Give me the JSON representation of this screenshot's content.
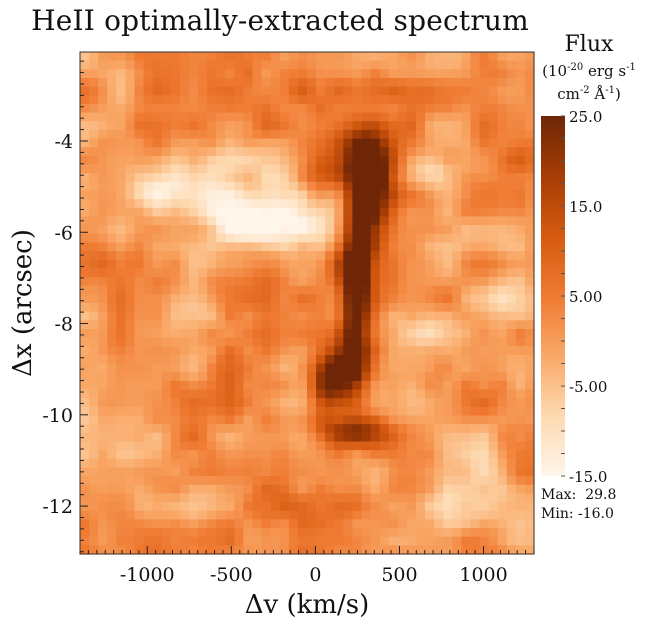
{
  "chart_data": {
    "type": "heatmap",
    "title": "HeII optimally-extracted spectrum",
    "xlabel": "Δv (km/s)",
    "ylabel": "Δx (arcsec)",
    "xlim": [
      -1400,
      1300
    ],
    "ylim": [
      -13.05,
      -2.05
    ],
    "x_ticks": [
      -1000,
      -500,
      0,
      500,
      1000
    ],
    "x_tick_labels": [
      "-1000",
      "-500",
      "0",
      "500",
      "1000"
    ],
    "y_ticks": [
      -4,
      -6,
      -8,
      -10,
      -12
    ],
    "y_tick_labels": [
      "-4",
      "-6",
      "-8",
      "-10",
      "-12"
    ],
    "colorbar": {
      "title": "Flux",
      "units_line1": "(10",
      "units_exp1": "-20",
      "units_line1b": " erg s",
      "units_exp2": "-1",
      "units_line2": "cm",
      "units_exp3": "-2",
      "units_line2b": " Å",
      "units_exp4": "-1",
      "units_line2c": ")",
      "range": [
        -15,
        25
      ],
      "tick_labels": [
        "25.0",
        "15.0",
        "5.00",
        "-5.00",
        "-15.0"
      ],
      "tick_values": [
        25,
        15,
        5,
        -5,
        -15
      ],
      "colors": [
        "#fff6ec",
        "#fdd9b0",
        "#f9a867",
        "#ef7a32",
        "#d55a10",
        "#a63d05",
        "#6e2606"
      ]
    },
    "stats": {
      "max_label": "Max:",
      "max_value": "29.8",
      "min_label": "Min:",
      "min_value": "-16.0"
    },
    "features": [
      {
        "vx": 290,
        "y": -4.35,
        "sx": 130,
        "sy": 0.45,
        "amp": 20
      },
      {
        "vx": 330,
        "y": -5.0,
        "sx": 90,
        "sy": 0.7,
        "amp": 24
      },
      {
        "vx": 250,
        "y": -6.4,
        "sx": 70,
        "sy": 1.0,
        "amp": 21
      },
      {
        "vx": 230,
        "y": -7.9,
        "sx": 65,
        "sy": 0.9,
        "amp": 19
      },
      {
        "vx": 170,
        "y": -9.1,
        "sx": 110,
        "sy": 0.55,
        "amp": 22
      },
      {
        "vx": 60,
        "y": -9.4,
        "sx": 70,
        "sy": 0.4,
        "amp": 14
      },
      {
        "vx": 200,
        "y": -10.35,
        "sx": 170,
        "sy": 0.25,
        "amp": 16
      },
      {
        "vx": 40,
        "y": -4.7,
        "sx": 80,
        "sy": 0.35,
        "amp": 10
      },
      {
        "vx": -510,
        "y": -9.0,
        "sx": 60,
        "sy": 0.3,
        "amp": 8
      },
      {
        "vx": 760,
        "y": -9.0,
        "sx": 60,
        "sy": 0.3,
        "amp": 7
      },
      {
        "vx": -820,
        "y": -4.9,
        "sx": 240,
        "sy": 0.45,
        "amp": -13
      },
      {
        "vx": -330,
        "y": -5.7,
        "sx": 260,
        "sy": 0.45,
        "amp": -15
      },
      {
        "vx": -150,
        "y": -5.1,
        "sx": 120,
        "sy": 0.5,
        "amp": -11
      },
      {
        "vx": 700,
        "y": -4.7,
        "sx": 120,
        "sy": 0.3,
        "amp": -11
      },
      {
        "vx": 1100,
        "y": -7.5,
        "sx": 180,
        "sy": 0.8,
        "amp": -7
      },
      {
        "vx": -700,
        "y": -7.9,
        "sx": 160,
        "sy": 0.5,
        "amp": -7
      },
      {
        "vx": 600,
        "y": -8.2,
        "sx": 140,
        "sy": 0.6,
        "amp": -7
      },
      {
        "vx": -1100,
        "y": -10.6,
        "sx": 180,
        "sy": 0.6,
        "amp": -6
      },
      {
        "vx": 900,
        "y": -11.5,
        "sx": 200,
        "sy": 0.7,
        "amp": -6
      }
    ]
  }
}
